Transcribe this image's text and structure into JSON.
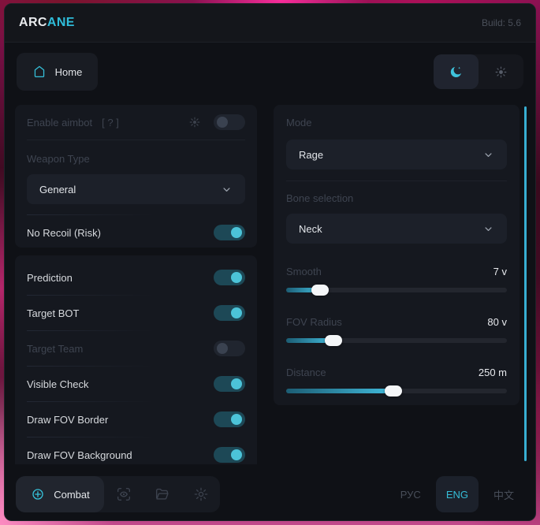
{
  "titlebar": {
    "brand_prefix": "ARC",
    "brand_suffix": "ANE",
    "build": "Build: 5.6"
  },
  "nav": {
    "home_label": "Home"
  },
  "left": {
    "enable_aimbot": {
      "label": "Enable aimbot",
      "hint": "[ ? ]",
      "on": false,
      "disabled": true
    },
    "weapon_type": {
      "label": "Weapon Type",
      "value": "General"
    },
    "no_recoil": {
      "label": "No Recoil (Risk)",
      "on": true,
      "disabled": false
    },
    "toggles": [
      {
        "label": "Prediction",
        "on": true,
        "disabled": false
      },
      {
        "label": "Target BOT",
        "on": true,
        "disabled": false
      },
      {
        "label": "Target Team",
        "on": false,
        "disabled": true
      },
      {
        "label": "Visible Check",
        "on": true,
        "disabled": false
      },
      {
        "label": "Draw FOV Border",
        "on": true,
        "disabled": false
      },
      {
        "label": "Draw FOV Background",
        "on": true,
        "disabled": false
      }
    ]
  },
  "right": {
    "mode": {
      "label": "Mode",
      "value": "Rage"
    },
    "bone": {
      "label": "Bone selection",
      "value": "Neck"
    },
    "sliders": [
      {
        "label": "Smooth",
        "value": "7 v",
        "percent": 15.5
      },
      {
        "label": "FOV Radius",
        "value": "80 v",
        "percent": 21.5
      },
      {
        "label": "Distance",
        "value": "250 m",
        "percent": 48.5
      }
    ]
  },
  "bottombar": {
    "combat_label": "Combat",
    "icons": [
      "esp-eye",
      "configs-folder",
      "settings-gear"
    ],
    "languages": [
      {
        "label": "РУС",
        "active": false
      },
      {
        "label": "ENG",
        "active": true
      },
      {
        "label": "中文",
        "active": false
      }
    ]
  },
  "colors": {
    "accent": "#35c0da",
    "scrollbar": "#38aed2",
    "toggle_on_track": "#1d4856",
    "toggle_on_knob": "#4cc3d8",
    "card_bg": "#15181f",
    "window_bg": "#0f1116",
    "slider_fill_start": "#1c5d74",
    "slider_fill_end": "#41bbdc"
  }
}
